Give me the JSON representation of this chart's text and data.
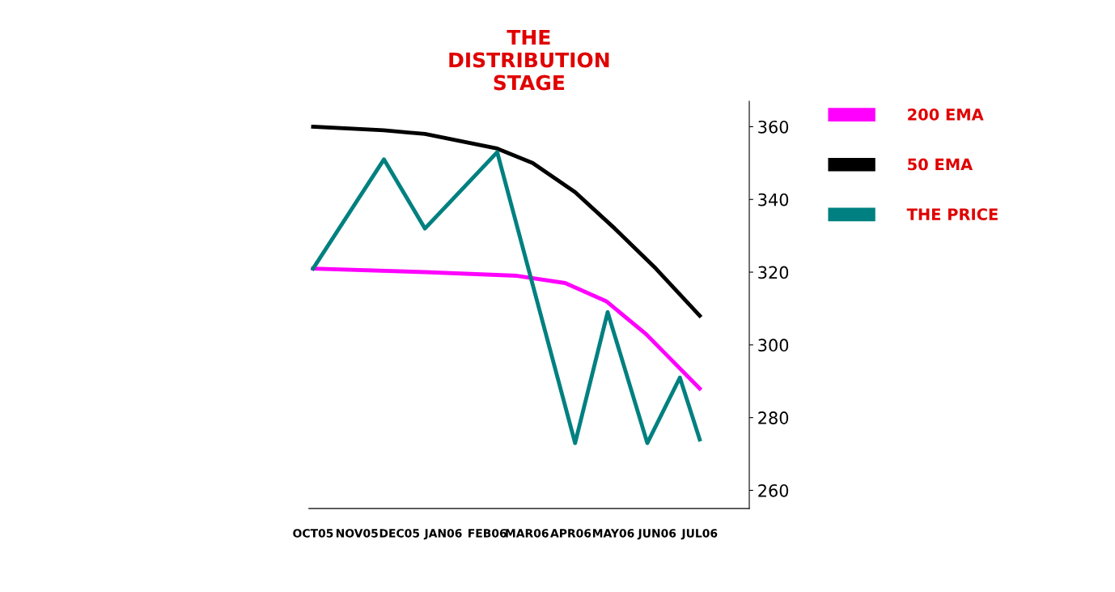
{
  "chart_data": {
    "type": "line",
    "title": "THE\nDISTRIBUTION\nSTAGE",
    "xticks": [
      {
        "value": "2005-10-01",
        "label": "OCT05"
      },
      {
        "value": "2005-11-01",
        "label": "NOV05"
      },
      {
        "value": "2005-12-01",
        "label": "DEC05"
      },
      {
        "value": "2006-01-01",
        "label": "JAN06"
      },
      {
        "value": "2006-02-01",
        "label": "FEB06"
      },
      {
        "value": "2006-03-01",
        "label": "MAR06"
      },
      {
        "value": "2006-04-01",
        "label": "APR06"
      },
      {
        "value": "2006-05-01",
        "label": "MAY06"
      },
      {
        "value": "2006-06-01",
        "label": "JUN06"
      },
      {
        "value": "2006-07-01",
        "label": "JUL06"
      }
    ],
    "xlim": [
      "2005-09-28",
      "2006-08-05"
    ],
    "ylim": [
      255,
      367
    ],
    "yticks": [
      260,
      280,
      300,
      320,
      340,
      360
    ],
    "series": [
      {
        "name": "200 EMA",
        "color": "#ff00ff",
        "x": [
          "2005-10-01",
          "2005-12-19",
          "2006-02-22",
          "2006-03-28",
          "2006-04-26",
          "2006-05-24",
          "2006-07-01"
        ],
        "values": [
          321,
          320,
          319,
          317,
          312,
          303,
          288
        ]
      },
      {
        "name": "50 EMA",
        "color": "#000000",
        "x": [
          "2005-10-01",
          "2005-11-20",
          "2005-12-19",
          "2006-02-08",
          "2006-03-05",
          "2006-04-04",
          "2006-05-02",
          "2006-05-31",
          "2006-07-01"
        ],
        "values": [
          360,
          359,
          358,
          354,
          350,
          342,
          332,
          321,
          308
        ]
      },
      {
        "name": "THE PRICE",
        "color": "#008080",
        "x": [
          "2005-10-01",
          "2005-11-20",
          "2005-12-19",
          "2006-02-08",
          "2006-04-04",
          "2006-04-27",
          "2006-05-25",
          "2006-06-17",
          "2006-07-01"
        ],
        "values": [
          321,
          351,
          332,
          353,
          273,
          309,
          273,
          291,
          274
        ]
      }
    ],
    "legend": "right",
    "grid": false,
    "marker": "none",
    "line_style": "solid"
  }
}
